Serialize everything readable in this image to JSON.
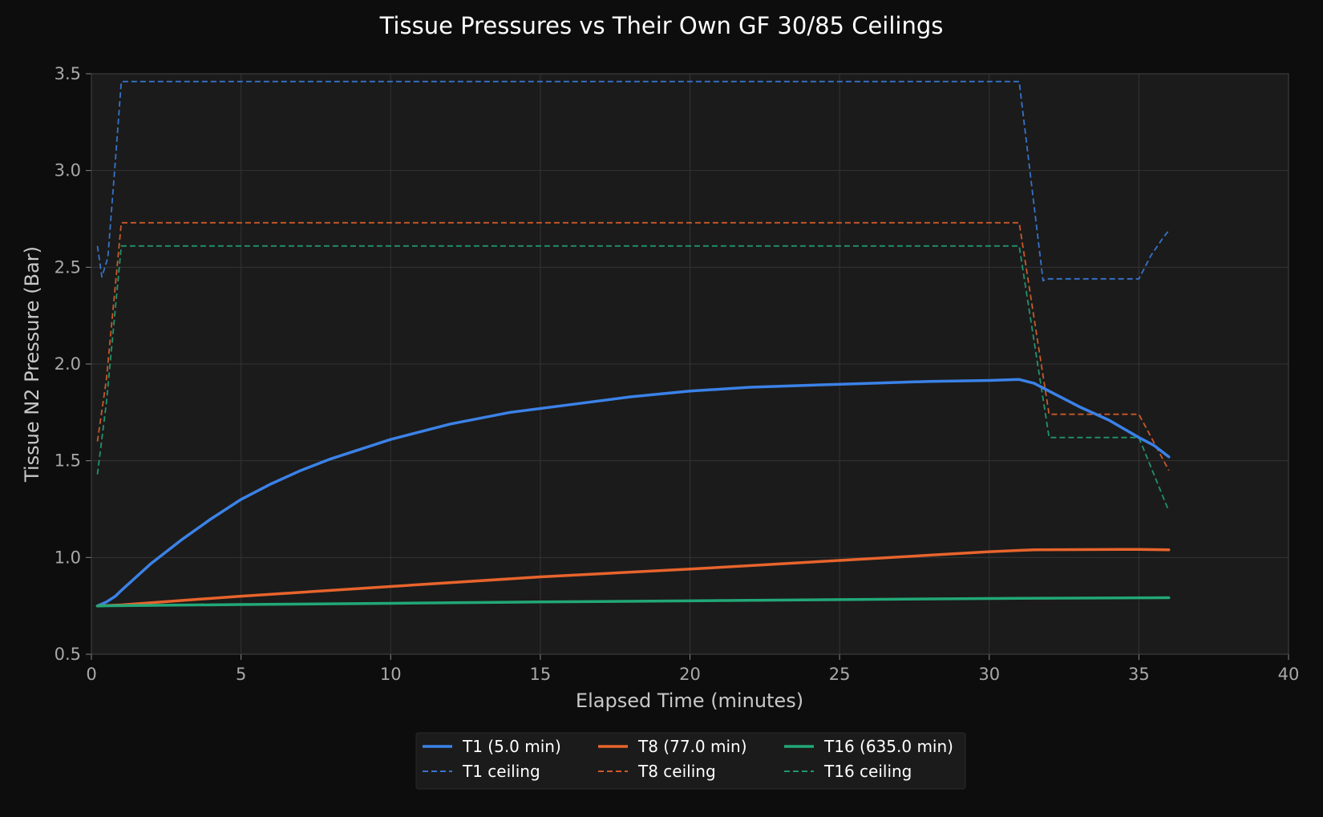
{
  "chart_data": {
    "type": "line",
    "title": "Tissue Pressures vs Their Own GF 30/85 Ceilings",
    "xlabel": "Elapsed Time (minutes)",
    "ylabel": "Tissue N2 Pressure (Bar)",
    "xlim": [
      0,
      40
    ],
    "ylim": [
      0.5,
      3.5
    ],
    "x_ticks": [
      0,
      5,
      10,
      15,
      20,
      25,
      30,
      35,
      40
    ],
    "x_tick_labels": [
      "0",
      "5",
      "10",
      "15",
      "20",
      "25",
      "30",
      "35",
      "40"
    ],
    "y_ticks": [
      0.5,
      1.0,
      1.5,
      2.0,
      2.5,
      3.0,
      3.5
    ],
    "y_tick_labels": [
      "0.5",
      "1.0",
      "1.5",
      "2.0",
      "2.5",
      "3.0",
      "3.5"
    ],
    "grid": true,
    "legend_position": "bottom-center",
    "background": "#0d0d0d",
    "plot_background": "#1b1b1b",
    "grid_color": "#333333",
    "series": [
      {
        "name": "T1 (5.0 min)",
        "color": "#3b82e8",
        "style": "solid",
        "points": [
          [
            0.2,
            0.75
          ],
          [
            0.5,
            0.77
          ],
          [
            0.8,
            0.8
          ],
          [
            1,
            0.83
          ],
          [
            1.5,
            0.9
          ],
          [
            2,
            0.97
          ],
          [
            3,
            1.09
          ],
          [
            4,
            1.2
          ],
          [
            5,
            1.3
          ],
          [
            6,
            1.38
          ],
          [
            7,
            1.45
          ],
          [
            8,
            1.51
          ],
          [
            9,
            1.56
          ],
          [
            10,
            1.61
          ],
          [
            12,
            1.69
          ],
          [
            14,
            1.75
          ],
          [
            16,
            1.79
          ],
          [
            18,
            1.83
          ],
          [
            20,
            1.86
          ],
          [
            22,
            1.88
          ],
          [
            24,
            1.89
          ],
          [
            26,
            1.9
          ],
          [
            28,
            1.91
          ],
          [
            30,
            1.915
          ],
          [
            31,
            1.92
          ],
          [
            31.5,
            1.9
          ],
          [
            32,
            1.86
          ],
          [
            32.5,
            1.82
          ],
          [
            33,
            1.78
          ],
          [
            34,
            1.71
          ],
          [
            35,
            1.62
          ],
          [
            35.5,
            1.58
          ],
          [
            36,
            1.52
          ]
        ]
      },
      {
        "name": "T1 ceiling",
        "color": "#3b82e8",
        "style": "dashed",
        "points": [
          [
            0.2,
            2.61
          ],
          [
            0.35,
            2.45
          ],
          [
            0.55,
            2.55
          ],
          [
            0.8,
            3.05
          ],
          [
            1.0,
            3.46
          ],
          [
            31.0,
            3.46
          ],
          [
            31.8,
            2.43
          ],
          [
            31.9,
            2.44
          ],
          [
            35.0,
            2.44
          ],
          [
            35.4,
            2.56
          ],
          [
            35.8,
            2.65
          ],
          [
            36.0,
            2.69
          ]
        ]
      },
      {
        "name": "T8 (77.0 min)",
        "color": "#e8642c",
        "style": "solid",
        "points": [
          [
            0.2,
            0.75
          ],
          [
            1,
            0.755
          ],
          [
            5,
            0.8
          ],
          [
            10,
            0.85
          ],
          [
            15,
            0.9
          ],
          [
            20,
            0.94
          ],
          [
            25,
            0.985
          ],
          [
            30,
            1.03
          ],
          [
            31.5,
            1.04
          ],
          [
            35,
            1.042
          ],
          [
            36,
            1.04
          ]
        ]
      },
      {
        "name": "T8 ceiling",
        "color": "#e8642c",
        "style": "dashed",
        "points": [
          [
            0.2,
            1.6
          ],
          [
            0.5,
            1.92
          ],
          [
            1.0,
            2.73
          ],
          [
            31.0,
            2.73
          ],
          [
            32.0,
            1.74
          ],
          [
            35.0,
            1.74
          ],
          [
            36.0,
            1.45
          ]
        ]
      },
      {
        "name": "T16 (635.0 min)",
        "color": "#22a878",
        "style": "solid",
        "points": [
          [
            0.2,
            0.75
          ],
          [
            5,
            0.757
          ],
          [
            10,
            0.763
          ],
          [
            15,
            0.77
          ],
          [
            20,
            0.776
          ],
          [
            25,
            0.782
          ],
          [
            30,
            0.788
          ],
          [
            31,
            0.789
          ],
          [
            36,
            0.792
          ]
        ]
      },
      {
        "name": "T16 ceiling",
        "color": "#22a878",
        "style": "dashed",
        "points": [
          [
            0.2,
            1.43
          ],
          [
            0.5,
            1.8
          ],
          [
            1.0,
            2.61
          ],
          [
            31.0,
            2.61
          ],
          [
            32.0,
            1.62
          ],
          [
            35.0,
            1.62
          ],
          [
            36.0,
            1.24
          ]
        ]
      }
    ],
    "legend": {
      "columns": [
        [
          "T1 (5.0 min)",
          "T1 ceiling"
        ],
        [
          "T8 (77.0 min)",
          "T8 ceiling"
        ],
        [
          "T16 (635.0 min)",
          "T16 ceiling"
        ]
      ]
    }
  }
}
